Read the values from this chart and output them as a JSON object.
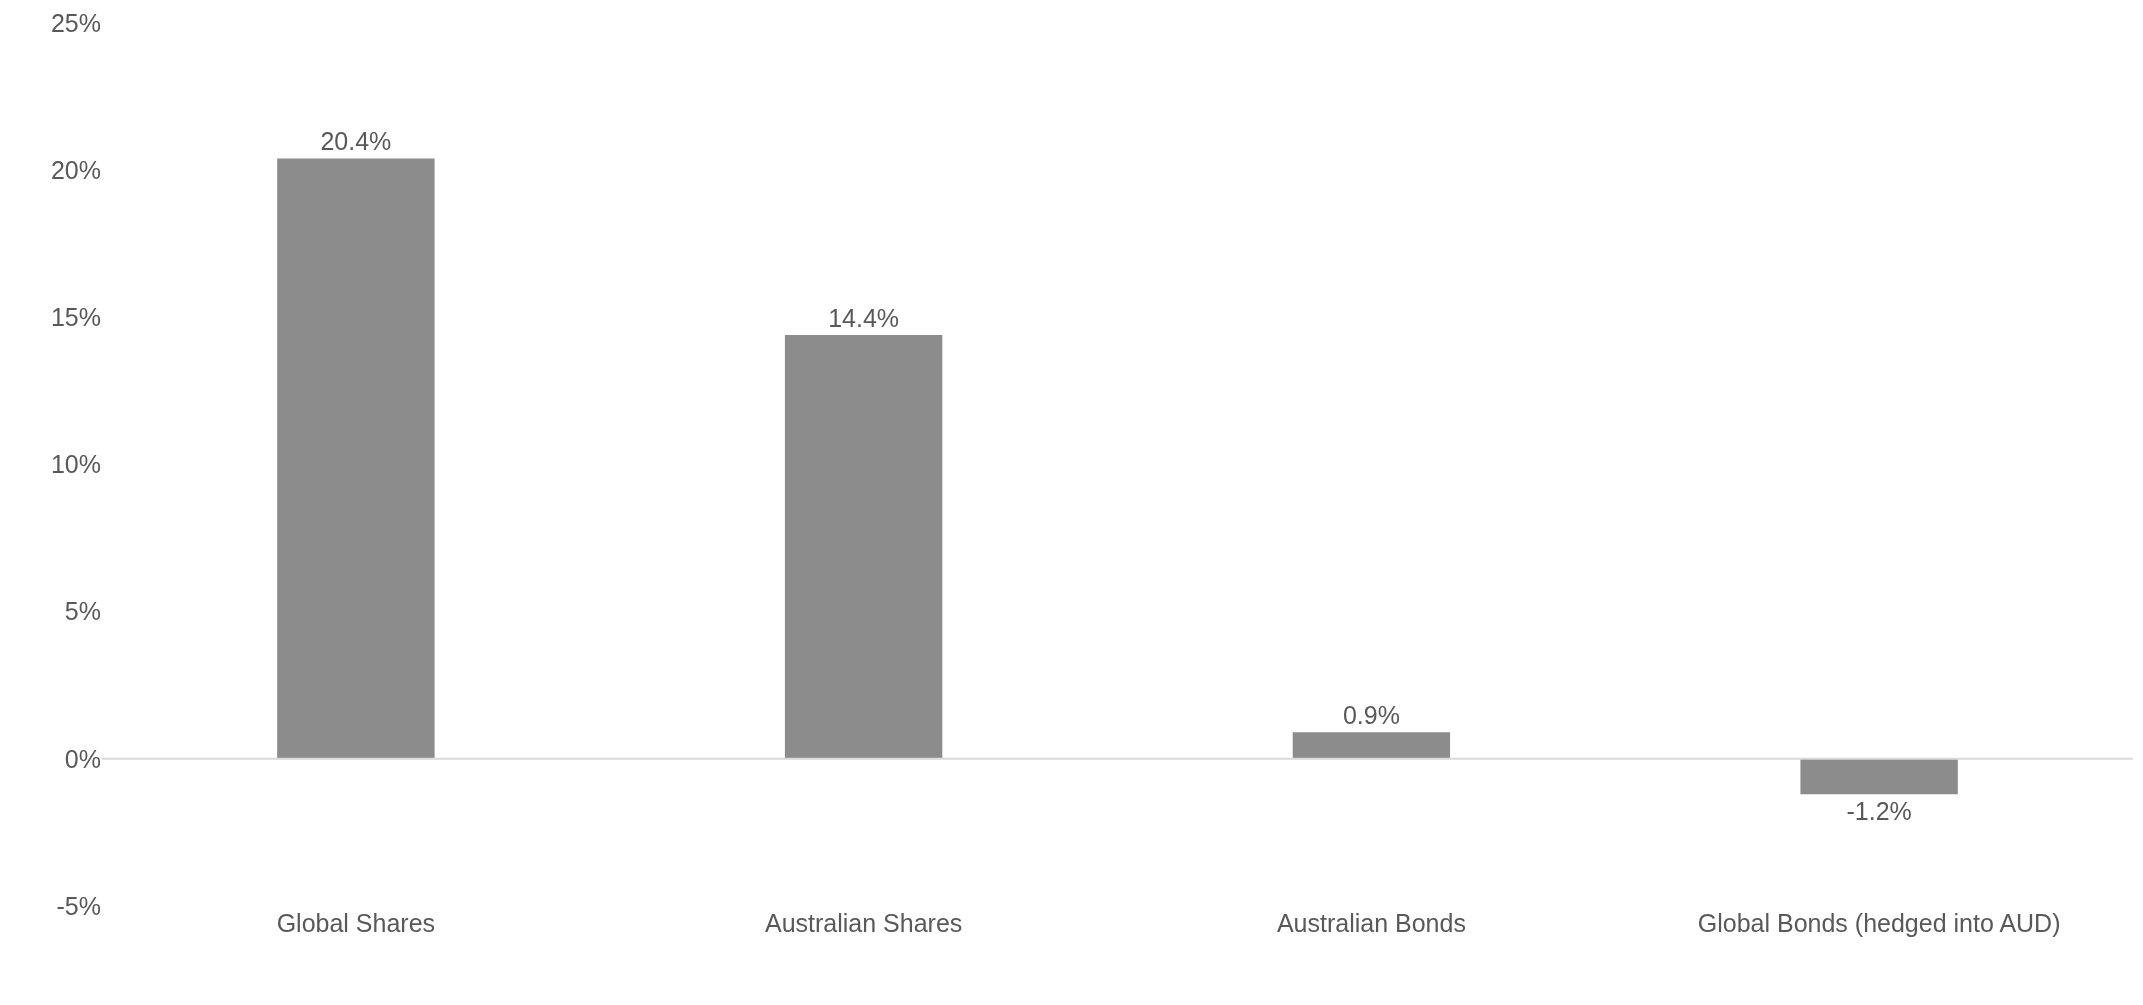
{
  "chart_data": {
    "type": "bar",
    "categories": [
      "Global Shares",
      "Australian Shares",
      "Australian Bonds",
      "Global Bonds (hedged into AUD)"
    ],
    "values": [
      20.4,
      14.4,
      0.9,
      -1.2
    ],
    "value_labels": [
      "20.4%",
      "14.4%",
      "0.9%",
      "-1.2%"
    ],
    "color": "#8c8c8c",
    "ylim": [
      -5,
      25
    ],
    "yticks": [
      {
        "value": -5,
        "label": "-5%"
      },
      {
        "value": 0,
        "label": "0%"
      },
      {
        "value": 5,
        "label": "5%"
      },
      {
        "value": 10,
        "label": "10%"
      },
      {
        "value": 15,
        "label": "15%"
      },
      {
        "value": 20,
        "label": "20%"
      },
      {
        "value": 25,
        "label": "25%"
      }
    ],
    "ref_lines": [
      {
        "axis": "y",
        "value": 0,
        "color": "#d9d9d9"
      }
    ],
    "grid": false
  }
}
